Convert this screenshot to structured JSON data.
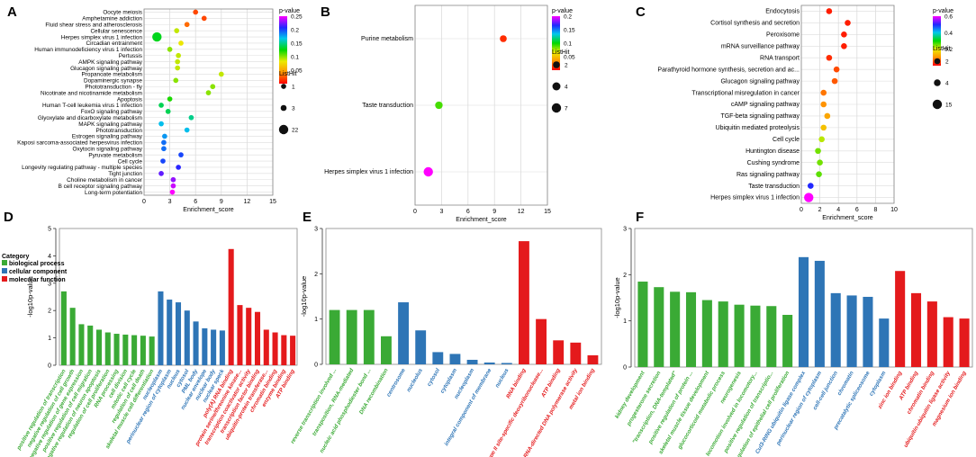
{
  "colors": {
    "green": "#3aaa35",
    "blue": "#2e75b6",
    "red": "#e41a1c",
    "grid": "#dcdcdc",
    "frame": "#888888"
  },
  "chart_data": [
    {
      "panel": "A",
      "type": "scatter",
      "xlabel": "Enrichment_score",
      "xlim": [
        0,
        15
      ],
      "xticks": [
        0,
        3,
        6,
        9,
        12,
        15
      ],
      "legend_color_title": "p-value",
      "color_range": [
        0,
        0.25
      ],
      "color_ticks": [
        0.25,
        0.2,
        0.15,
        0.1,
        0.05
      ],
      "legend_size_title": "ListHit",
      "size_ticks": [
        1,
        3,
        22
      ],
      "points": [
        {
          "term": "Oocyte meiosis",
          "x": 6.0,
          "p": 0.02,
          "hits": 1
        },
        {
          "term": "Amphetamine addiction",
          "x": 7.0,
          "p": 0.02,
          "hits": 1
        },
        {
          "term": "Fluid shear stress and atherosclerosis",
          "x": 5.0,
          "p": 0.03,
          "hits": 1
        },
        {
          "term": "Cellular senescence",
          "x": 3.8,
          "p": 0.09,
          "hits": 1
        },
        {
          "term": "Herpes simplex virus 1 infection",
          "x": 1.5,
          "p": 0.13,
          "hits": 22
        },
        {
          "term": "Circadian entrainment",
          "x": 4.3,
          "p": 0.08,
          "hits": 1
        },
        {
          "term": "Human immunodeficiency virus 1 infection",
          "x": 3.0,
          "p": 0.1,
          "hits": 1
        },
        {
          "term": "Pertussis",
          "x": 4.0,
          "p": 0.09,
          "hits": 1
        },
        {
          "term": "AMPK signaling pathway",
          "x": 3.9,
          "p": 0.09,
          "hits": 1
        },
        {
          "term": "Glucagon signaling pathway",
          "x": 3.9,
          "p": 0.09,
          "hits": 1
        },
        {
          "term": "Propanoate metabolism",
          "x": 9.0,
          "p": 0.09,
          "hits": 1
        },
        {
          "term": "Dopaminergic synapse",
          "x": 3.7,
          "p": 0.1,
          "hits": 1
        },
        {
          "term": "Phototransduction - fly",
          "x": 8.0,
          "p": 0.1,
          "hits": 1
        },
        {
          "term": "Nicotinate and nicotinamide metabolism",
          "x": 7.5,
          "p": 0.1,
          "hits": 1
        },
        {
          "term": "Apoptosis",
          "x": 3.0,
          "p": 0.12,
          "hits": 1
        },
        {
          "term": "Human T-cell leukemia virus 1 infection",
          "x": 2.0,
          "p": 0.14,
          "hits": 1
        },
        {
          "term": "FoxO signaling pathway",
          "x": 2.8,
          "p": 0.14,
          "hits": 1
        },
        {
          "term": "Glyoxylate and dicarboxylate metabolism",
          "x": 5.5,
          "p": 0.15,
          "hits": 1
        },
        {
          "term": "MAPK signaling pathway",
          "x": 2.0,
          "p": 0.17,
          "hits": 1
        },
        {
          "term": "Phototransduction",
          "x": 5.0,
          "p": 0.17,
          "hits": 1
        },
        {
          "term": "Estrogen signaling pathway",
          "x": 2.4,
          "p": 0.18,
          "hits": 1
        },
        {
          "term": "Kaposi sarcoma-associated herpesvirus infection",
          "x": 2.3,
          "p": 0.19,
          "hits": 1
        },
        {
          "term": "Oxytocin signaling pathway",
          "x": 2.3,
          "p": 0.19,
          "hits": 1
        },
        {
          "term": "Pyruvate metabolism",
          "x": 4.3,
          "p": 0.2,
          "hits": 1
        },
        {
          "term": "Cell cycle",
          "x": 2.2,
          "p": 0.2,
          "hits": 1
        },
        {
          "term": "Longevity regulating pathway - multiple species",
          "x": 4.0,
          "p": 0.21,
          "hits": 1
        },
        {
          "term": "Tight junction",
          "x": 2.0,
          "p": 0.22,
          "hits": 1
        },
        {
          "term": "Choline metabolism in cancer",
          "x": 3.4,
          "p": 0.23,
          "hits": 1
        },
        {
          "term": "B cell receptor signaling pathway",
          "x": 3.4,
          "p": 0.24,
          "hits": 1
        },
        {
          "term": "Long-term potentiation",
          "x": 3.3,
          "p": 0.25,
          "hits": 1
        }
      ]
    },
    {
      "panel": "B",
      "type": "scatter",
      "xlabel": "Enrichment_score",
      "xlim": [
        0,
        15
      ],
      "xticks": [
        0,
        3,
        6,
        9,
        12,
        15
      ],
      "legend_color_title": "p-value",
      "color_range": [
        0,
        0.2
      ],
      "color_ticks": [
        0.2,
        0.15,
        0.1,
        0.05
      ],
      "legend_size_title": "ListHit",
      "size_ticks": [
        2,
        4,
        7
      ],
      "points": [
        {
          "term": "Purine metabolism",
          "x": 10.0,
          "p": 0.01,
          "hits": 2
        },
        {
          "term": "Taste transduction",
          "x": 2.7,
          "p": 0.09,
          "hits": 3
        },
        {
          "term": "Herpes simplex virus 1 infection",
          "x": 1.5,
          "p": 0.2,
          "hits": 7
        }
      ]
    },
    {
      "panel": "C",
      "type": "scatter",
      "xlabel": "Enrichment_score",
      "xlim": [
        0,
        10
      ],
      "xticks": [
        0,
        2,
        4,
        6,
        8,
        10
      ],
      "legend_color_title": "p-value",
      "color_range": [
        0,
        0.6
      ],
      "color_ticks": [
        0.6,
        0.4,
        0.2
      ],
      "legend_size_title": "ListHit",
      "size_ticks": [
        2,
        4,
        15
      ],
      "points": [
        {
          "term": "Endocytosis",
          "x": 3.0,
          "p": 0.02,
          "hits": 2
        },
        {
          "term": "Cortisol synthesis and secretion",
          "x": 5.0,
          "p": 0.02,
          "hits": 2
        },
        {
          "term": "Peroxisome",
          "x": 4.6,
          "p": 0.02,
          "hits": 2
        },
        {
          "term": "mRNA surveillance pathway",
          "x": 4.6,
          "p": 0.02,
          "hits": 2
        },
        {
          "term": "RNA transport",
          "x": 3.0,
          "p": 0.03,
          "hits": 2
        },
        {
          "term": "Parathyroid hormone synthesis, secretion and ac...",
          "x": 3.8,
          "p": 0.05,
          "hits": 2
        },
        {
          "term": "Glucagon signaling pathway",
          "x": 3.6,
          "p": 0.06,
          "hits": 2
        },
        {
          "term": "Transcriptional misregulation in cancer",
          "x": 2.4,
          "p": 0.08,
          "hits": 2
        },
        {
          "term": "cAMP signaling pathway",
          "x": 2.4,
          "p": 0.1,
          "hits": 2
        },
        {
          "term": "TGF-beta signaling pathway",
          "x": 2.8,
          "p": 0.12,
          "hits": 2
        },
        {
          "term": "Ubiquitin mediated proteolysis",
          "x": 2.4,
          "p": 0.15,
          "hits": 2
        },
        {
          "term": "Cell cycle",
          "x": 2.2,
          "p": 0.22,
          "hits": 2
        },
        {
          "term": "Huntington disease",
          "x": 1.8,
          "p": 0.25,
          "hits": 2
        },
        {
          "term": "Cushing syndrome",
          "x": 2.0,
          "p": 0.25,
          "hits": 2
        },
        {
          "term": "Ras signaling pathway",
          "x": 1.9,
          "p": 0.26,
          "hits": 2
        },
        {
          "term": "Taste transduction",
          "x": 1.0,
          "p": 0.5,
          "hits": 2
        },
        {
          "term": "Herpes simplex virus 1 infection",
          "x": 0.8,
          "p": 0.62,
          "hits": 15
        }
      ]
    },
    {
      "panel": "D",
      "type": "bar",
      "ylabel": "-log10p-value",
      "ylim": [
        0,
        5
      ],
      "yticks": [
        0,
        1,
        2,
        3,
        4,
        5
      ],
      "legend_title": "Category",
      "legend": [
        {
          "name": "biological process",
          "cat": "bp"
        },
        {
          "name": "cellular component",
          "cat": "cc"
        },
        {
          "name": "molecular function",
          "cat": "mf"
        }
      ],
      "bars": [
        {
          "label": "positive regulation of transcription",
          "cat": "bp",
          "value": 2.7
        },
        {
          "label": "negative regulation of cell growth",
          "cat": "bp",
          "value": 2.1
        },
        {
          "label": "negative regulation of gene expression",
          "cat": "bp",
          "value": 1.5
        },
        {
          "label": "positive regulation of cell migration",
          "cat": "bp",
          "value": 1.45
        },
        {
          "label": "negative regulation of neuron apoptosis",
          "cat": "bp",
          "value": 1.3
        },
        {
          "label": "regulation of cell proliferation",
          "cat": "bp",
          "value": 1.2
        },
        {
          "label": "RNA processing",
          "cat": "bp",
          "value": 1.15
        },
        {
          "label": "cell division",
          "cat": "bp",
          "value": 1.12
        },
        {
          "label": "mitotic cell cycle",
          "cat": "bp",
          "value": 1.1
        },
        {
          "label": "regulation of cell death",
          "cat": "bp",
          "value": 1.08
        },
        {
          "label": "skeletal muscle cell differentiation",
          "cat": "bp",
          "value": 1.05
        },
        {
          "label": "nucleoplasm",
          "cat": "cc",
          "value": 2.7
        },
        {
          "label": "perinuclear region of cytoplasm",
          "cat": "cc",
          "value": 2.4
        },
        {
          "label": "nucleus",
          "cat": "cc",
          "value": 2.3
        },
        {
          "label": "cytosol",
          "cat": "cc",
          "value": 2.0
        },
        {
          "label": "PML body",
          "cat": "cc",
          "value": 1.6
        },
        {
          "label": "nuclear envelope",
          "cat": "cc",
          "value": 1.35
        },
        {
          "label": "nuclear body",
          "cat": "cc",
          "value": 1.3
        },
        {
          "label": "nuclear speck",
          "cat": "cc",
          "value": 1.27
        },
        {
          "label": "poly(A) RNA binding",
          "cat": "mf",
          "value": 4.25
        },
        {
          "label": "protein serine/threonine kinase...",
          "cat": "mf",
          "value": 2.2
        },
        {
          "label": "transcription coactivator activity",
          "cat": "mf",
          "value": 2.1
        },
        {
          "label": "transcription factor binding",
          "cat": "mf",
          "value": 1.95
        },
        {
          "label": "ubiquitin-protein transferase...",
          "cat": "mf",
          "value": 1.3
        },
        {
          "label": "chromatin binding",
          "cat": "mf",
          "value": 1.2
        },
        {
          "label": "enzyme binding",
          "cat": "mf",
          "value": 1.1
        },
        {
          "label": "ATP binding",
          "cat": "mf",
          "value": 1.08
        }
      ]
    },
    {
      "panel": "E",
      "type": "bar",
      "ylabel": "-log10p-value",
      "ylim": [
        0,
        3
      ],
      "yticks": [
        0,
        1,
        2,
        3
      ],
      "bars": [
        {
          "label": "reverse transcription involved ...",
          "cat": "bp",
          "value": 1.2
        },
        {
          "label": "transposition, RNA-mediated",
          "cat": "bp",
          "value": 1.2
        },
        {
          "label": "nucleic acid phosphodiester bond ...",
          "cat": "bp",
          "value": 1.2
        },
        {
          "label": "DNA recombination",
          "cat": "bp",
          "value": 0.62
        },
        {
          "label": "centrosome",
          "cat": "cc",
          "value": 1.37
        },
        {
          "label": "nucleolus",
          "cat": "cc",
          "value": 0.75
        },
        {
          "label": "cytosol",
          "cat": "cc",
          "value": 0.27
        },
        {
          "label": "cytoplasm",
          "cat": "cc",
          "value": 0.23
        },
        {
          "label": "nucleoplasm",
          "cat": "cc",
          "value": 0.1
        },
        {
          "label": "integral component of membrane",
          "cat": "cc",
          "value": 0.04
        },
        {
          "label": "nucleus",
          "cat": "cc",
          "value": 0.03
        },
        {
          "label": "RNA binding",
          "cat": "mf",
          "value": 2.72
        },
        {
          "label": "type II site-specific deoxyribonuclease...",
          "cat": "mf",
          "value": 1.0
        },
        {
          "label": "ATP binding",
          "cat": "mf",
          "value": 0.53
        },
        {
          "label": "RNA-directed DNA polymerase activity",
          "cat": "mf",
          "value": 0.48
        },
        {
          "label": "metal ion binding",
          "cat": "mf",
          "value": 0.2
        }
      ]
    },
    {
      "panel": "F",
      "type": "bar",
      "ylabel": "-log10p-value",
      "ylim": [
        0,
        3
      ],
      "yticks": [
        0,
        1,
        2,
        3
      ],
      "bars": [
        {
          "label": "kidney development",
          "cat": "bp",
          "value": 1.85
        },
        {
          "label": "progesterone secretion",
          "cat": "bp",
          "value": 1.73
        },
        {
          "label": "\"transcription, DNA-templated\"",
          "cat": "bp",
          "value": 1.63
        },
        {
          "label": "positive regulation of protein ...",
          "cat": "bp",
          "value": 1.62
        },
        {
          "label": "skeletal muscle tissue development",
          "cat": "bp",
          "value": 1.45
        },
        {
          "label": "glucocorticoid metabolic process",
          "cat": "bp",
          "value": 1.42
        },
        {
          "label": "neurogenesis",
          "cat": "bp",
          "value": 1.35
        },
        {
          "label": "locomotion involved in locomotory...",
          "cat": "bp",
          "value": 1.33
        },
        {
          "label": "positive regulation of transcriptio...",
          "cat": "bp",
          "value": 1.32
        },
        {
          "label": "regulation of epithelial cell proliferation",
          "cat": "bp",
          "value": 1.13
        },
        {
          "label": "Cul3-RING ubiquitin ligase complex",
          "cat": "cc",
          "value": 2.38
        },
        {
          "label": "perinuclear region of cytoplasm",
          "cat": "cc",
          "value": 2.3
        },
        {
          "label": "cell-cell junction",
          "cat": "cc",
          "value": 1.6
        },
        {
          "label": "chromatin",
          "cat": "cc",
          "value": 1.55
        },
        {
          "label": "precatalytic spliceosome",
          "cat": "cc",
          "value": 1.52
        },
        {
          "label": "cytoplasm",
          "cat": "cc",
          "value": 1.05
        },
        {
          "label": "zinc ion binding",
          "cat": "mf",
          "value": 2.08
        },
        {
          "label": "ATP binding",
          "cat": "mf",
          "value": 1.6
        },
        {
          "label": "chromatin binding",
          "cat": "mf",
          "value": 1.42
        },
        {
          "label": "ubiquitin-ubiquitin ligase activity",
          "cat": "mf",
          "value": 1.08
        },
        {
          "label": "magnesium ion binding",
          "cat": "mf",
          "value": 1.05
        }
      ]
    }
  ]
}
